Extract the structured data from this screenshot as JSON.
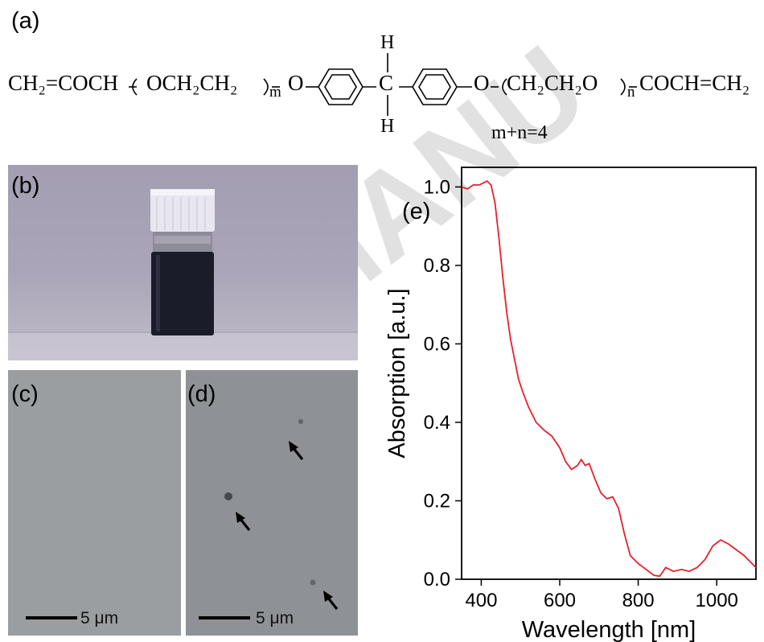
{
  "panel_a": {
    "label": "(a)",
    "left_chain": "CH₂=COCH",
    "left_repeat": "OCH₂CH₂",
    "left_sub": "m",
    "oxygen_left": "O",
    "h_top": "H",
    "carbon": "C",
    "h_bottom": "H",
    "oxygen_right": "O",
    "right_repeat": "CH₂CH₂O",
    "right_sub": "n",
    "right_chain": "COCH=CH₂",
    "constraint": "m+n=4"
  },
  "panel_b": {
    "label": "(b)"
  },
  "panel_c": {
    "label": "(c)",
    "scale_label": "5 μm"
  },
  "panel_d": {
    "label": "(d)",
    "scale_label": "5 μm"
  },
  "panel_e": {
    "label": "(e)"
  },
  "watermark": "MANU",
  "chart_data": {
    "type": "line",
    "xlabel": "Wavelength [nm]",
    "ylabel": "Absorption [a.u.]",
    "xlim": [
      350,
      1100
    ],
    "ylim": [
      0,
      1.05
    ],
    "xticks": [
      400,
      600,
      800,
      1000
    ],
    "yticks": [
      0.0,
      0.2,
      0.4,
      0.6,
      0.8,
      1.0
    ],
    "ytick_labels": [
      "0.0",
      "0.2",
      "0.4",
      "0.6",
      "0.8",
      "1.0"
    ],
    "grid": false,
    "series": [
      {
        "color": "#e8202a",
        "points": [
          [
            350,
            1.0
          ],
          [
            365,
            0.995
          ],
          [
            380,
            1.005
          ],
          [
            395,
            1.005
          ],
          [
            405,
            1.01
          ],
          [
            415,
            1.015
          ],
          [
            425,
            1.005
          ],
          [
            435,
            0.96
          ],
          [
            445,
            0.87
          ],
          [
            455,
            0.77
          ],
          [
            465,
            0.68
          ],
          [
            475,
            0.61
          ],
          [
            485,
            0.56
          ],
          [
            495,
            0.51
          ],
          [
            505,
            0.48
          ],
          [
            520,
            0.44
          ],
          [
            540,
            0.4
          ],
          [
            560,
            0.38
          ],
          [
            580,
            0.365
          ],
          [
            600,
            0.335
          ],
          [
            615,
            0.3
          ],
          [
            630,
            0.28
          ],
          [
            645,
            0.29
          ],
          [
            655,
            0.305
          ],
          [
            665,
            0.29
          ],
          [
            675,
            0.295
          ],
          [
            690,
            0.255
          ],
          [
            705,
            0.22
          ],
          [
            720,
            0.205
          ],
          [
            735,
            0.21
          ],
          [
            750,
            0.18
          ],
          [
            765,
            0.115
          ],
          [
            780,
            0.06
          ],
          [
            800,
            0.04
          ],
          [
            820,
            0.025
          ],
          [
            840,
            0.01
          ],
          [
            855,
            0.008
          ],
          [
            870,
            0.03
          ],
          [
            890,
            0.02
          ],
          [
            910,
            0.025
          ],
          [
            930,
            0.02
          ],
          [
            950,
            0.03
          ],
          [
            970,
            0.05
          ],
          [
            990,
            0.085
          ],
          [
            1010,
            0.1
          ],
          [
            1030,
            0.09
          ],
          [
            1050,
            0.075
          ],
          [
            1070,
            0.06
          ],
          [
            1085,
            0.045
          ],
          [
            1100,
            0.03
          ]
        ]
      }
    ]
  }
}
